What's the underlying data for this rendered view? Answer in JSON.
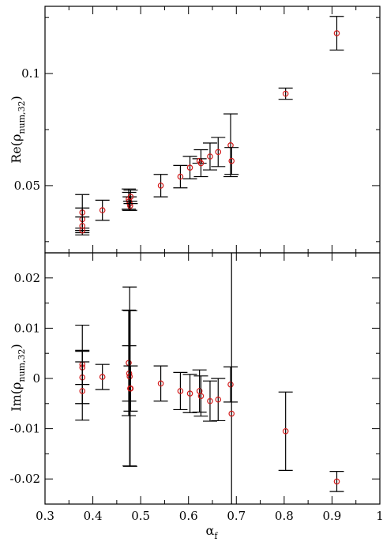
{
  "chart_data": [
    {
      "type": "scatter",
      "panel": "top",
      "xlabel": "",
      "ylabel_main": "Re(ρ",
      "ylabel_sub": "num,32",
      "ylabel_end": ")",
      "xlim": [
        0.3,
        1.0
      ],
      "ylim": [
        0.02,
        0.13
      ],
      "yticks": [
        0.05,
        0.1
      ],
      "ytick_labels": [
        "0.05",
        "0.1"
      ],
      "minor_yticks": [
        0.025,
        0.075,
        0.125
      ],
      "points": [
        {
          "x": 0.378,
          "y": 0.038,
          "err": 0.008
        },
        {
          "x": 0.378,
          "y": 0.035,
          "err": 0.005
        },
        {
          "x": 0.378,
          "y": 0.032,
          "err": 0.004
        },
        {
          "x": 0.378,
          "y": 0.03,
          "err": 0.001
        },
        {
          "x": 0.42,
          "y": 0.039,
          "err": 0.0045
        },
        {
          "x": 0.475,
          "y": 0.044,
          "err": 0.0045
        },
        {
          "x": 0.476,
          "y": 0.043,
          "err": 0.004
        },
        {
          "x": 0.477,
          "y": 0.042,
          "err": 0.003
        },
        {
          "x": 0.478,
          "y": 0.041,
          "err": 0.002
        },
        {
          "x": 0.479,
          "y": 0.045,
          "err": 0.003
        },
        {
          "x": 0.542,
          "y": 0.05,
          "err": 0.005
        },
        {
          "x": 0.583,
          "y": 0.054,
          "err": 0.005
        },
        {
          "x": 0.603,
          "y": 0.058,
          "err": 0.005
        },
        {
          "x": 0.623,
          "y": 0.061,
          "err": 0.001
        },
        {
          "x": 0.626,
          "y": 0.06,
          "err": 0.006
        },
        {
          "x": 0.645,
          "y": 0.063,
          "err": 0.006
        },
        {
          "x": 0.662,
          "y": 0.065,
          "err": 0.0065
        },
        {
          "x": 0.688,
          "y": 0.068,
          "err": 0.014
        },
        {
          "x": 0.69,
          "y": 0.061,
          "err": 0.006
        },
        {
          "x": 0.803,
          "y": 0.091,
          "err": 0.0025
        },
        {
          "x": 0.91,
          "y": 0.118,
          "err": 0.0075
        }
      ]
    },
    {
      "type": "scatter",
      "panel": "bottom",
      "xlabel_main": "α",
      "xlabel_sub": "f",
      "ylabel_main": "Im(ρ",
      "ylabel_sub": "num,32",
      "ylabel_end": ")",
      "xlim": [
        0.3,
        1.0
      ],
      "ylim": [
        -0.025,
        0.025
      ],
      "xticks": [
        0.3,
        0.4,
        0.5,
        0.6,
        0.7,
        0.8,
        0.9,
        1.0
      ],
      "xtick_labels": [
        "0.3",
        "0.4",
        "0.5",
        "0.6",
        "0.7",
        "0.8",
        "0.9",
        "1"
      ],
      "yticks": [
        -0.02,
        -0.01,
        0.0,
        0.01,
        0.02
      ],
      "ytick_labels": [
        "-0.02",
        "-0.01",
        "0",
        "0.01",
        "0.02"
      ],
      "minor_yticks": [
        -0.015,
        -0.005,
        0.005,
        0.015
      ],
      "points": [
        {
          "x": 0.378,
          "y": 0.0028,
          "err": 0.0078
        },
        {
          "x": 0.378,
          "y": 0.0022,
          "err": 0.0034
        },
        {
          "x": 0.378,
          "y": 0.0002,
          "err": 0.0052
        },
        {
          "x": 0.378,
          "y": -0.0025,
          "err": 0.0058
        },
        {
          "x": 0.42,
          "y": 0.0003,
          "err": 0.0025
        },
        {
          "x": 0.475,
          "y": 0.0031,
          "err": 0.0105
        },
        {
          "x": 0.476,
          "y": 0.001,
          "err": 0.0055
        },
        {
          "x": 0.477,
          "y": 0.0004,
          "err": 0.0178
        },
        {
          "x": 0.478,
          "y": -0.002,
          "err": 0.0155
        },
        {
          "x": 0.479,
          "y": -0.002,
          "err": 0.0045
        },
        {
          "x": 0.542,
          "y": -0.001,
          "err": 0.0035
        },
        {
          "x": 0.583,
          "y": -0.0025,
          "err": 0.0037
        },
        {
          "x": 0.603,
          "y": -0.003,
          "err": 0.0038
        },
        {
          "x": 0.623,
          "y": -0.0025,
          "err": 0.0042
        },
        {
          "x": 0.626,
          "y": -0.0035,
          "err": 0.004
        },
        {
          "x": 0.645,
          "y": -0.0045,
          "err": 0.004
        },
        {
          "x": 0.662,
          "y": -0.0042,
          "err": 0.0042
        },
        {
          "x": 0.688,
          "y": -0.0012,
          "err": 0.0035
        },
        {
          "x": 0.69,
          "y": -0.007,
          "err": 0.033
        },
        {
          "x": 0.803,
          "y": -0.0105,
          "err": 0.0078
        },
        {
          "x": 0.91,
          "y": -0.0205,
          "err": 0.002
        }
      ]
    }
  ]
}
